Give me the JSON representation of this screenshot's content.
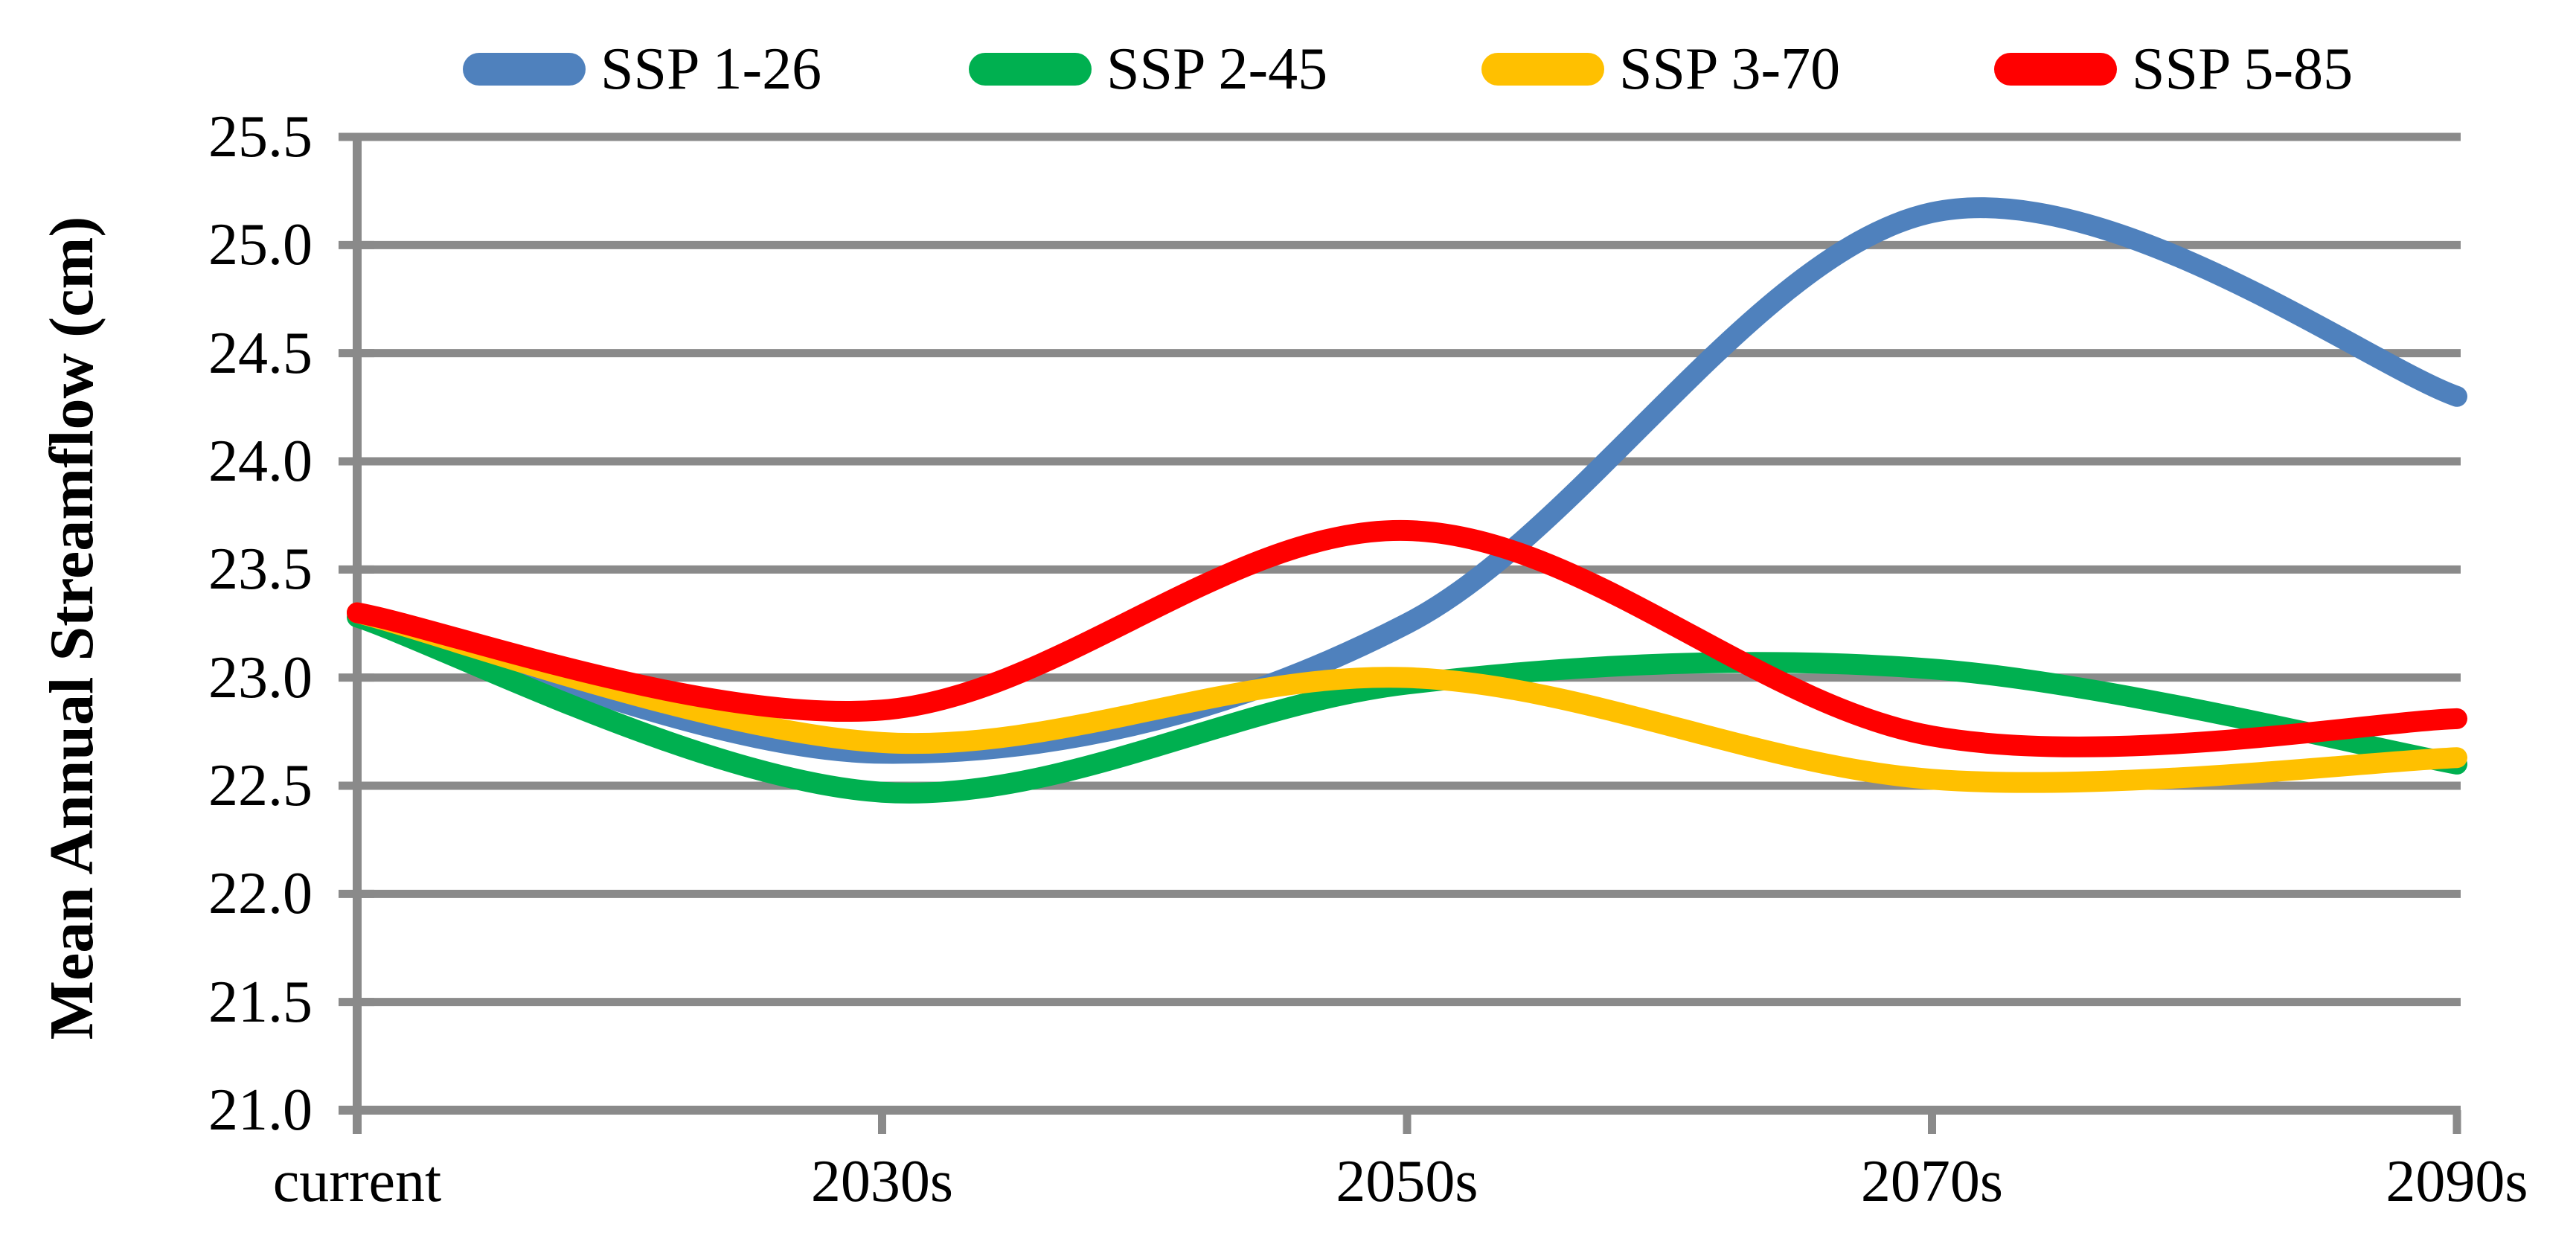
{
  "chart_data": {
    "type": "line",
    "smoothed": true,
    "title": "",
    "xlabel": "",
    "ylabel": "Mean Annual Streamflow (cm)",
    "categories": [
      "current",
      "2030s",
      "2050s",
      "2070s",
      "2090s"
    ],
    "series": [
      {
        "name": "SSP 1-26",
        "color": "#4F81BD",
        "values": [
          23.3,
          22.65,
          23.25,
          25.15,
          24.3
        ]
      },
      {
        "name": "SSP 2-45",
        "color": "#00B050",
        "values": [
          23.28,
          22.47,
          22.97,
          23.04,
          22.6
        ]
      },
      {
        "name": "SSP 3-70",
        "color": "#FFC000",
        "values": [
          23.3,
          22.7,
          23.0,
          22.53,
          22.63
        ]
      },
      {
        "name": "SSP 5-85",
        "color": "#FF0000",
        "values": [
          23.3,
          22.85,
          23.68,
          22.73,
          22.81
        ]
      }
    ],
    "ylim": [
      21.0,
      25.5
    ],
    "ytick_step": 0.5,
    "yticks": [
      "25.5",
      "25.0",
      "24.5",
      "24.0",
      "23.5",
      "23.0",
      "22.5",
      "22.0",
      "21.5",
      "21.0"
    ],
    "grid": true,
    "grid_color": "#8a8a8a",
    "axis_color": "#8a8a8a",
    "text_color": "#000000",
    "legend_position": "top"
  }
}
